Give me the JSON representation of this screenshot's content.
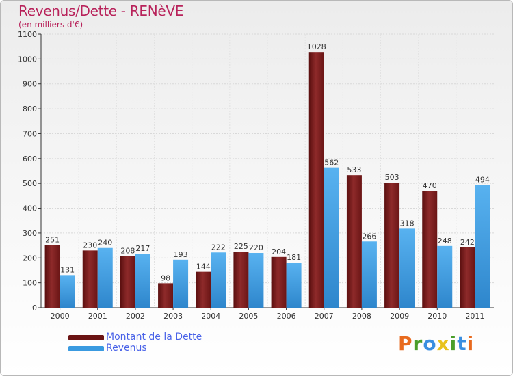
{
  "header": {
    "title": "Revenus/Dette - RENèVE",
    "subtitle": "(en milliers d'€)"
  },
  "legend": {
    "items": [
      {
        "label": "Montant de la Dette",
        "color": "#6b1414"
      },
      {
        "label": "Revenus",
        "color": "#3a9ae0"
      }
    ]
  },
  "logo": {
    "text": "Proxiti",
    "letters": [
      {
        "ch": "P",
        "color": "#e86a1e"
      },
      {
        "ch": "r",
        "color": "#4a9e2a"
      },
      {
        "ch": "o",
        "color": "#3a8ee0"
      },
      {
        "ch": "x",
        "color": "#e8c21e"
      },
      {
        "ch": "i",
        "color": "#4a9e2a"
      },
      {
        "ch": "t",
        "color": "#3a8ee0"
      },
      {
        "ch": "i",
        "color": "#e86a1e"
      }
    ]
  },
  "chart_data": {
    "type": "bar",
    "title": "Revenus/Dette - RENèVE",
    "subtitle": "(en milliers d'€)",
    "xlabel": "",
    "ylabel": "",
    "categories": [
      "2000",
      "2001",
      "2002",
      "2003",
      "2004",
      "2005",
      "2006",
      "2007",
      "2008",
      "2009",
      "2010",
      "2011"
    ],
    "series": [
      {
        "name": "Montant de la Dette",
        "color": "#7b1a1a",
        "values": [
          251,
          230,
          208,
          98,
          144,
          225,
          204,
          1028,
          533,
          503,
          470,
          242
        ]
      },
      {
        "name": "Revenus",
        "color": "#4aa3e6",
        "values": [
          131,
          240,
          217,
          193,
          222,
          220,
          181,
          562,
          266,
          318,
          248,
          494
        ]
      }
    ],
    "ylim": [
      0,
      1100
    ],
    "yticks": [
      0,
      100,
      200,
      300,
      400,
      500,
      600,
      700,
      800,
      900,
      1000,
      1100
    ],
    "grid": true,
    "legend_position": "bottom-left"
  }
}
